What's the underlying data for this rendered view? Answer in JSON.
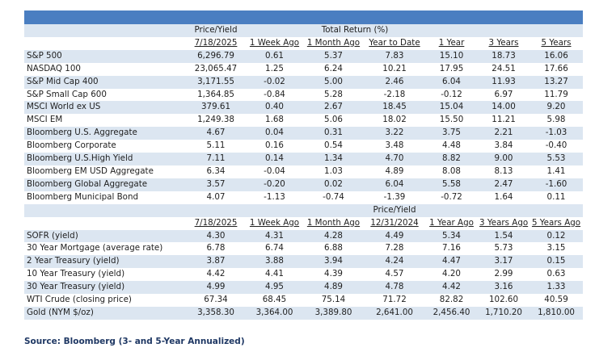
{
  "table1": {
    "group_price": "Price/Yield",
    "group_return": "Total Return (%)",
    "columns": [
      "7/18/2025",
      "1 Week Ago",
      "1 Month Ago",
      "Year to Date",
      "1 Year",
      "3 Years",
      "5 Years"
    ],
    "rows": [
      {
        "name": "S&P 500",
        "values": [
          "6,296.79",
          "0.61",
          "5.37",
          "7.83",
          "15.10",
          "18.73",
          "16.06"
        ]
      },
      {
        "name": "NASDAQ 100",
        "values": [
          "23,065.47",
          "1.25",
          "6.24",
          "10.21",
          "17.95",
          "24.51",
          "17.66"
        ]
      },
      {
        "name": "S&P Mid Cap 400",
        "values": [
          "3,171.55",
          "-0.02",
          "5.00",
          "2.46",
          "6.04",
          "11.93",
          "13.27"
        ]
      },
      {
        "name": "S&P Small Cap 600",
        "values": [
          "1,364.85",
          "-0.84",
          "5.28",
          "-2.18",
          "-0.12",
          "6.97",
          "11.79"
        ]
      },
      {
        "name": "MSCI World ex US",
        "values": [
          "379.61",
          "0.40",
          "2.67",
          "18.45",
          "15.04",
          "14.00",
          "9.20"
        ]
      },
      {
        "name": "MSCI EM",
        "values": [
          "1,249.38",
          "1.68",
          "5.06",
          "18.02",
          "15.50",
          "11.21",
          "5.98"
        ]
      },
      {
        "name": "Bloomberg U.S. Aggregate",
        "values": [
          "4.67",
          "0.04",
          "0.31",
          "3.22",
          "3.75",
          "2.21",
          "-1.03"
        ]
      },
      {
        "name": "Bloomberg Corporate",
        "values": [
          "5.11",
          "0.16",
          "0.54",
          "3.48",
          "4.48",
          "3.84",
          "-0.40"
        ]
      },
      {
        "name": "Bloomberg U.S.High Yield",
        "values": [
          "7.11",
          "0.14",
          "1.34",
          "4.70",
          "8.82",
          "9.00",
          "5.53"
        ]
      },
      {
        "name": "Bloomberg EM USD Aggregate",
        "values": [
          "6.34",
          "-0.04",
          "1.03",
          "4.89",
          "8.08",
          "8.13",
          "1.41"
        ]
      },
      {
        "name": "Bloomberg Global Aggregate",
        "values": [
          "3.57",
          "-0.20",
          "0.02",
          "6.04",
          "5.58",
          "2.47",
          "-1.60"
        ]
      },
      {
        "name": "Bloomberg Municipal Bond",
        "values": [
          "4.07",
          "-1.13",
          "-0.74",
          "-1.39",
          "-0.72",
          "1.64",
          "0.11"
        ]
      }
    ]
  },
  "table2": {
    "group_price": "Price/Yield",
    "columns": [
      "7/18/2025",
      "1 Week Ago",
      "1 Month Ago",
      "12/31/2024",
      "1 Year Ago",
      "3 Years Ago",
      "5 Years Ago"
    ],
    "rows": [
      {
        "name": "SOFR (yield)",
        "values": [
          "4.30",
          "4.31",
          "4.28",
          "4.49",
          "5.34",
          "1.54",
          "0.12"
        ]
      },
      {
        "name": "30 Year Mortgage (average rate)",
        "values": [
          "6.78",
          "6.74",
          "6.88",
          "7.28",
          "7.16",
          "5.73",
          "3.15"
        ]
      },
      {
        "name": "2 Year Treasury (yield)",
        "values": [
          "3.87",
          "3.88",
          "3.94",
          "4.24",
          "4.47",
          "3.17",
          "0.15"
        ]
      },
      {
        "name": "10 Year Treasury (yield)",
        "values": [
          "4.42",
          "4.41",
          "4.39",
          "4.57",
          "4.20",
          "2.99",
          "0.63"
        ]
      },
      {
        "name": "30 Year Treasury (yield)",
        "values": [
          "4.99",
          "4.95",
          "4.89",
          "4.78",
          "4.42",
          "3.16",
          "1.33"
        ]
      },
      {
        "name": "WTI Crude (closing price)",
        "values": [
          "67.34",
          "68.45",
          "75.14",
          "71.72",
          "82.82",
          "102.60",
          "40.59"
        ]
      },
      {
        "name": "Gold (NYM $/oz)",
        "values": [
          "3,358.30",
          "3,364.00",
          "3,389.80",
          "2,641.00",
          "2,456.40",
          "1,710.20",
          "1,810.00"
        ]
      }
    ]
  },
  "source_note": "Source: Bloomberg (3- and 5-Year Annualized)",
  "colors": {
    "header_bar": "#4a7ec1",
    "stripe": "#dce6f1",
    "source_text": "#1f3864"
  }
}
